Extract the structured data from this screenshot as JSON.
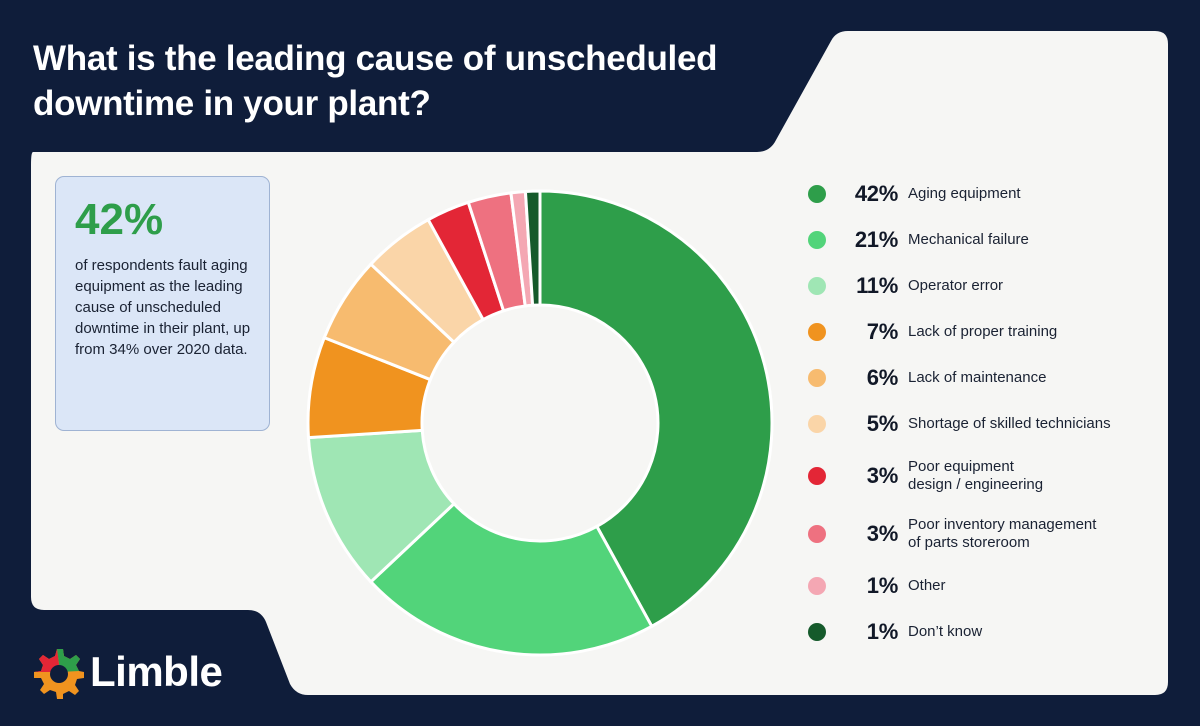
{
  "header": {
    "title": "What is the leading cause of unscheduled downtime in your plant?"
  },
  "callout": {
    "value": "42%",
    "text": "of respondents fault aging equipment as the leading cause of unscheduled downtime in their plant, up from 34% over 2020 data."
  },
  "brand": {
    "name": "Limble",
    "icon": "gear-icon"
  },
  "colors": {
    "background": "#0f1d3a",
    "panel": "#f6f6f4",
    "callout_bg": "#dbe6f7",
    "callout_accent": "#2e9e4a"
  },
  "chart_data": {
    "type": "pie",
    "donut": true,
    "categories": [
      "Aging equipment",
      "Mechanical failure",
      "Operator error",
      "Lack of proper training",
      "Lack of maintenance",
      "Shortage of skilled technicians",
      "Poor equipment design / engineering",
      "Poor inventory management of parts storeroom",
      "Other",
      "Don’t know"
    ],
    "labels": [
      [
        "Aging equipment"
      ],
      [
        "Mechanical failure"
      ],
      [
        "Operator error"
      ],
      [
        "Lack of proper training"
      ],
      [
        "Lack of maintenance"
      ],
      [
        "Shortage of skilled technicians"
      ],
      [
        "Poor equipment",
        "design / engineering"
      ],
      [
        "Poor inventory management",
        "of parts storeroom"
      ],
      [
        "Other"
      ],
      [
        "Don’t know"
      ]
    ],
    "values": [
      42,
      21,
      11,
      7,
      6,
      5,
      3,
      3,
      1,
      1
    ],
    "value_labels": [
      "42%",
      "21%",
      "11%",
      "7%",
      "6%",
      "5%",
      "3%",
      "3%",
      "1%",
      "1%"
    ],
    "colors": [
      "#2e9e4a",
      "#52d47a",
      "#9fe6b4",
      "#f0931f",
      "#f7bb6f",
      "#fad5a8",
      "#e32636",
      "#ee7180",
      "#f4a7b3",
      "#155a2b"
    ],
    "legend_position": "right"
  }
}
